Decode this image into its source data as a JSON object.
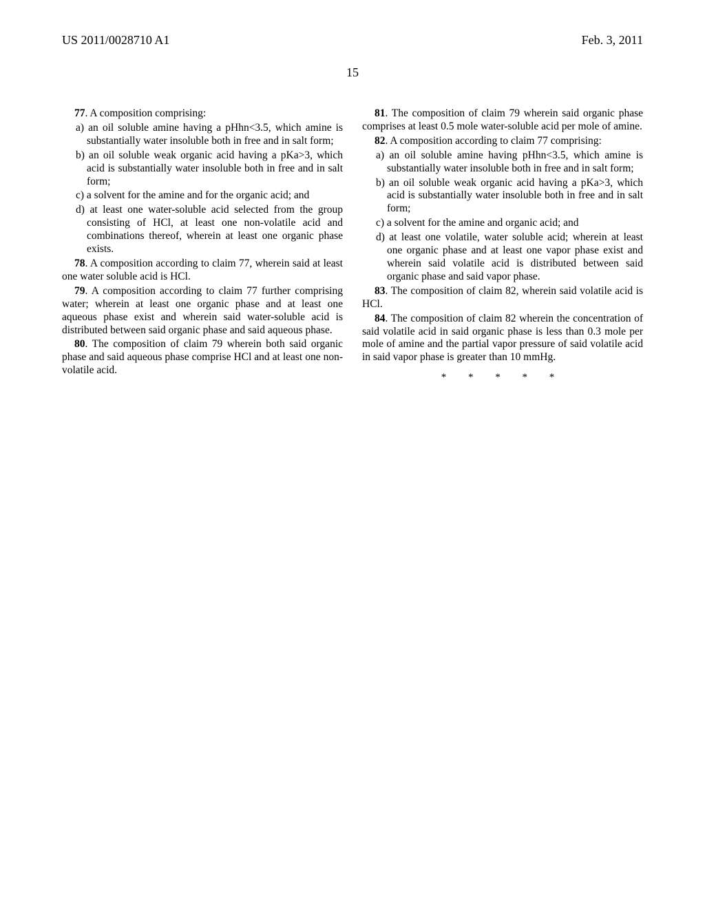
{
  "header": {
    "pub_number": "US 2011/0028710 A1",
    "pub_date": "Feb. 3, 2011"
  },
  "page_number": "15",
  "left": {
    "c77": {
      "lead": ". A composition comprising:",
      "a": "a) an oil soluble amine having a pHhn<3.5, which amine is substantially water insoluble both in free and in salt form;",
      "b": "b) an oil soluble weak organic acid having a pKa>3, which acid is substantially water insoluble both in free and in salt form;",
      "c": "c) a solvent for the amine and for the organic acid; and",
      "d": "d) at least one water-soluble acid selected from the group consisting of HCl, at least one non-volatile acid and combinations thereof, wherein at least one organic phase exists."
    },
    "c78": ". A composition according to claim 77, wherein said at least one water soluble acid is HCl.",
    "c79": ". A composition according to claim 77 further comprising water; wherein at least one organic phase and at least one aqueous phase exist and wherein said water-soluble acid is distributed between said organic phase and said aqueous phase.",
    "c80": ". The composition of claim 79 wherein both said organic phase and said aqueous phase comprise HCl and at least one non-volatile acid."
  },
  "right": {
    "c81": ". The composition of claim 79 wherein said organic phase comprises at least 0.5 mole water-soluble acid per mole of amine.",
    "c82": {
      "lead": ". A composition according to claim 77 comprising:",
      "a": "a) an oil soluble amine having pHhn<3.5, which amine is substantially water insoluble both in free and in salt form;",
      "b": "b) an oil soluble weak organic acid having a pKa>3, which acid is substantially water insoluble both in free and in salt form;",
      "c": "c) a solvent for the amine and organic acid; and",
      "d": "d) at least one volatile, water soluble acid; wherein at least one organic phase and at least one vapor phase exist and wherein said volatile acid is distributed between said organic phase and said vapor phase."
    },
    "c83": ". The composition of claim 82, wherein said volatile acid is HCl.",
    "c84": ". The composition of claim 82 wherein the concentration of said volatile acid in said organic phase is less than 0.3 mole per mole of amine and the partial vapor pressure of said volatile acid in said vapor phase is greater than 10 mmHg."
  },
  "nums": {
    "n77": "77",
    "n78": "78",
    "n79": "79",
    "n80": "80",
    "n81": "81",
    "n82": "82",
    "n83": "83",
    "n84": "84"
  },
  "end_marks": "*   *   *   *   *"
}
